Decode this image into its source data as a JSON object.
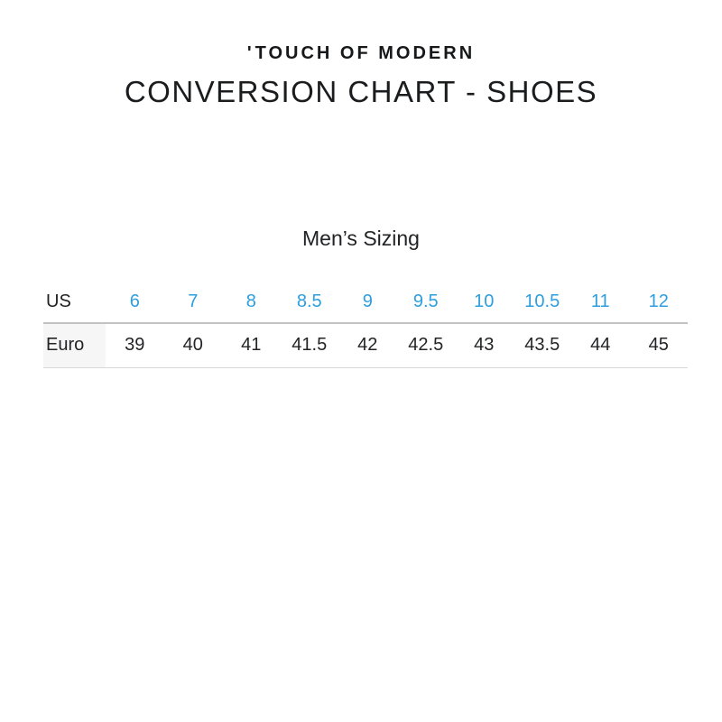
{
  "brand": {
    "logo_mark": "'",
    "logo_text": "TOUCH OF MODERN"
  },
  "page": {
    "heading": "CONVERSION CHART - SHOES"
  },
  "colors": {
    "accent_blue": "#2d9edf",
    "euro_header_bg": "#f6f6f6",
    "separator_top": "#c2c2c2",
    "separator_bottom": "#d8d8d8"
  },
  "chart_data": {
    "type": "table",
    "title": "Men’s Sizing",
    "rows": [
      {
        "label": "US",
        "values": [
          "6",
          "7",
          "8",
          "8.5",
          "9",
          "9.5",
          "10",
          "10.5",
          "11",
          "12"
        ]
      },
      {
        "label": "Euro",
        "values": [
          "39",
          "40",
          "41",
          "41.5",
          "42",
          "42.5",
          "43",
          "43.5",
          "44",
          "45"
        ]
      }
    ]
  }
}
